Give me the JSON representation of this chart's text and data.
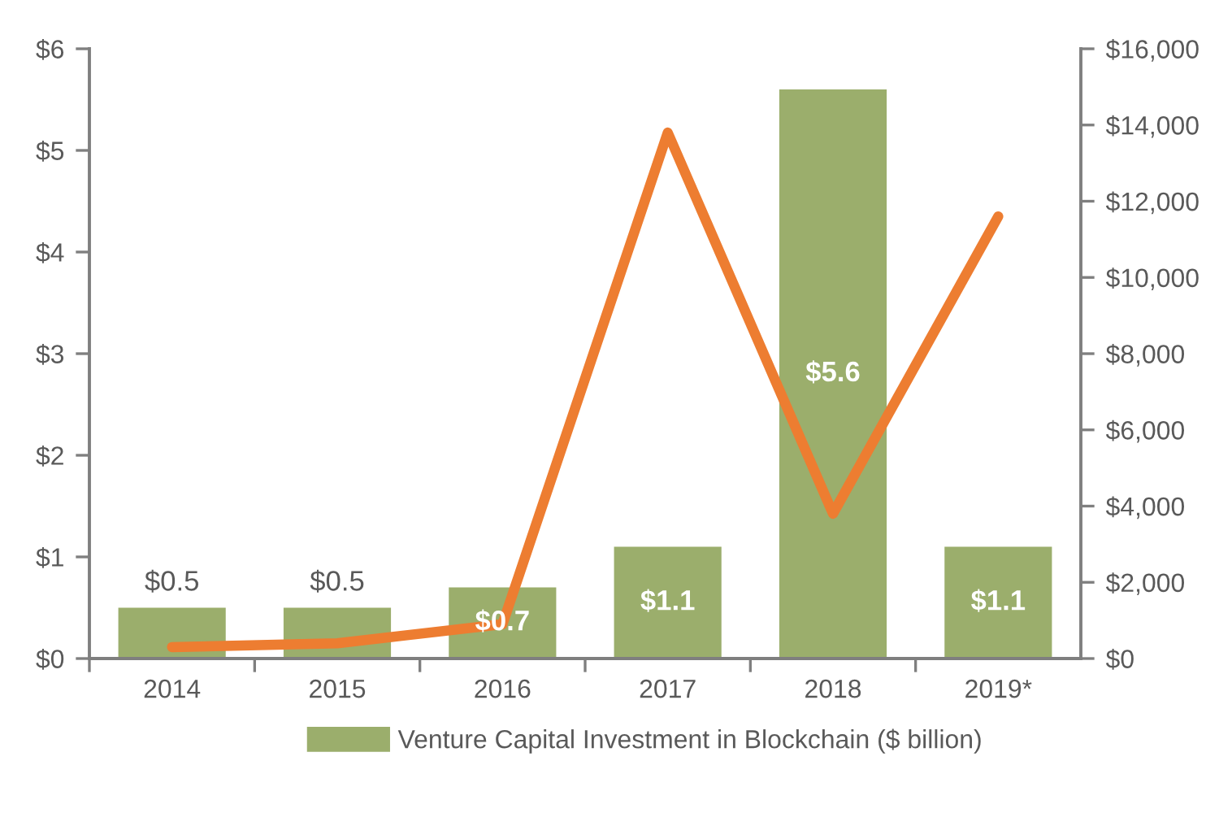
{
  "chart_data": {
    "type": "bar",
    "categories": [
      "2014",
      "2015",
      "2016",
      "2017",
      "2018",
      "2019*"
    ],
    "series": [
      {
        "name": "Venture Capital Investment in Blockchain ($ billion)",
        "color": "#9bae6c",
        "values": [
          0.5,
          0.5,
          0.7,
          1.1,
          5.6,
          1.1
        ],
        "value_labels": [
          "$0.5",
          "$0.5",
          "$0.7",
          "$1.1",
          "$5.6",
          "$1.1"
        ]
      },
      {
        "type": "line",
        "axis": "y2",
        "color": "#ed7d31",
        "values": [
          300,
          400,
          900,
          13800,
          3800,
          11600
        ]
      }
    ],
    "ylim": [
      0,
      6
    ],
    "yticks": [
      {
        "value": 0,
        "label": "$0"
      },
      {
        "value": 1,
        "label": "$1"
      },
      {
        "value": 2,
        "label": "$2"
      },
      {
        "value": 3,
        "label": "$3"
      },
      {
        "value": 4,
        "label": "$4"
      },
      {
        "value": 5,
        "label": "$5"
      },
      {
        "value": 6,
        "label": "$6"
      }
    ],
    "y2lim": [
      0,
      16000
    ],
    "y2ticks": [
      {
        "value": 0,
        "label": "$0"
      },
      {
        "value": 2000,
        "label": "$2,000"
      },
      {
        "value": 4000,
        "label": "$4,000"
      },
      {
        "value": 6000,
        "label": "$6,000"
      },
      {
        "value": 8000,
        "label": "$8,000"
      },
      {
        "value": 10000,
        "label": "$10,000"
      },
      {
        "value": 12000,
        "label": "$12,000"
      },
      {
        "value": 14000,
        "label": "$14,000"
      },
      {
        "value": 16000,
        "label": "$16,000"
      }
    ],
    "legend": "bottom"
  }
}
